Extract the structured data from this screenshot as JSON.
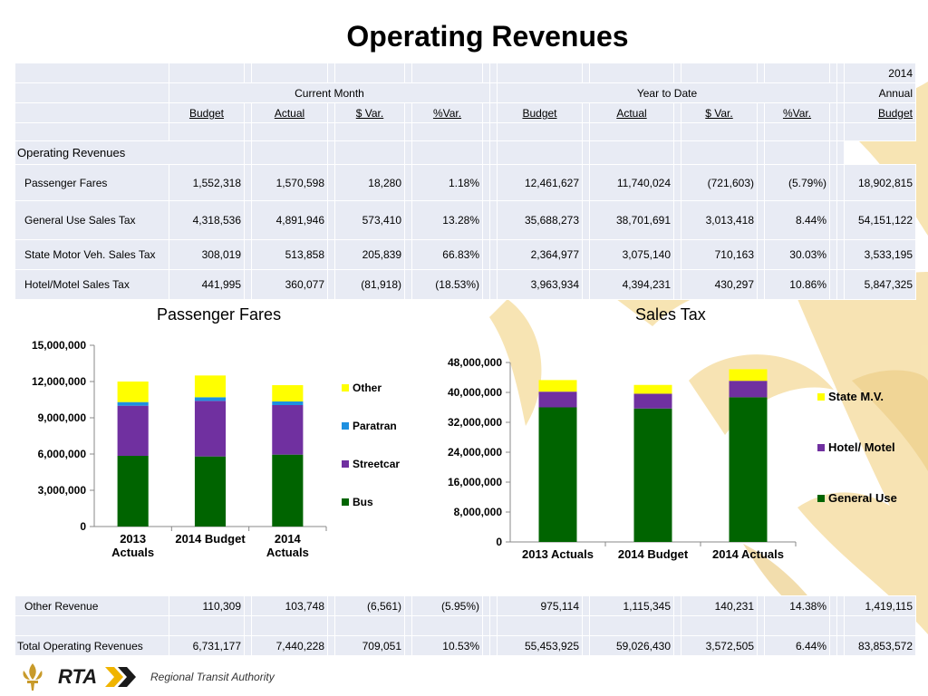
{
  "title": "Operating Revenues",
  "table": {
    "header_year": "2014",
    "group_current": "Current Month",
    "group_ytd": "Year to Date",
    "group_annual": "Annual",
    "col_labels": [
      "Budget",
      "Actual",
      "$ Var.",
      "%Var.",
      "Budget",
      "Actual",
      "$ Var.",
      "%Var.",
      "Budget"
    ],
    "section_label": "Operating Revenues",
    "rows": [
      {
        "label": "Passenger Fares",
        "cm_budget": "1,552,318",
        "cm_actual": "1,570,598",
        "cm_var": "18,280",
        "cm_pct": "1.18%",
        "ytd_budget": "12,461,627",
        "ytd_actual": "11,740,024",
        "ytd_var": "(721,603)",
        "ytd_pct": "(5.79%)",
        "annual_budget": "18,902,815"
      },
      {
        "label": "General Use Sales Tax",
        "cm_budget": "4,318,536",
        "cm_actual": "4,891,946",
        "cm_var": "573,410",
        "cm_pct": "13.28%",
        "ytd_budget": "35,688,273",
        "ytd_actual": "38,701,691",
        "ytd_var": "3,013,418",
        "ytd_pct": "8.44%",
        "annual_budget": "54,151,122"
      },
      {
        "label": "State Motor Veh. Sales Tax",
        "cm_budget": "308,019",
        "cm_actual": "513,858",
        "cm_var": "205,839",
        "cm_pct": "66.83%",
        "ytd_budget": "2,364,977",
        "ytd_actual": "3,075,140",
        "ytd_var": "710,163",
        "ytd_pct": "30.03%",
        "annual_budget": "3,533,195"
      },
      {
        "label": "Hotel/Motel Sales Tax",
        "cm_budget": "441,995",
        "cm_actual": "360,077",
        "cm_var": "(81,918)",
        "cm_pct": "(18.53%)",
        "ytd_budget": "3,963,934",
        "ytd_actual": "4,394,231",
        "ytd_var": "430,297",
        "ytd_pct": "10.86%",
        "annual_budget": "5,847,325"
      }
    ],
    "other_row": {
      "label": "Other Revenue",
      "cm_budget": "110,309",
      "cm_actual": "103,748",
      "cm_var": "(6,561)",
      "cm_pct": "(5.95%)",
      "ytd_budget": "975,114",
      "ytd_actual": "1,115,345",
      "ytd_var": "140,231",
      "ytd_pct": "14.38%",
      "annual_budget": "1,419,115"
    },
    "total_row": {
      "label": "Total Operating Revenues",
      "cm_budget": "6,731,177",
      "cm_actual": "7,440,228",
      "cm_var": "709,051",
      "cm_pct": "10.53%",
      "ytd_budget": "55,453,925",
      "ytd_actual": "59,026,430",
      "ytd_var": "3,572,505",
      "ytd_pct": "6.44%",
      "annual_budget": "83,853,572"
    }
  },
  "chart_data": [
    {
      "type": "bar",
      "stacked": true,
      "title": "Passenger Fares",
      "categories": [
        "2013 Actuals",
        "2014 Budget",
        "2014 Actuals"
      ],
      "category_lines": [
        [
          "2013",
          "Actuals"
        ],
        [
          "2014 Budget"
        ],
        [
          "2014",
          "Actuals"
        ]
      ],
      "series": [
        {
          "name": "Bus",
          "color": "#006400",
          "values": [
            5850000,
            5800000,
            5950000
          ]
        },
        {
          "name": "Streetcar",
          "color": "#7030a0",
          "values": [
            4150000,
            4600000,
            4100000
          ]
        },
        {
          "name": "Paratran",
          "color": "#1e90e0",
          "values": [
            300000,
            300000,
            300000
          ]
        },
        {
          "name": "Other",
          "color": "#ffff00",
          "values": [
            1700000,
            1800000,
            1350000
          ]
        }
      ],
      "legend_order": [
        "Other",
        "Paratran",
        "Streetcar",
        "Bus"
      ],
      "ylim": [
        0,
        15000000
      ],
      "yticks": [
        0,
        3000000,
        6000000,
        9000000,
        12000000,
        15000000
      ],
      "ytick_labels": [
        "0",
        "3,000,000",
        "6,000,000",
        "9,000,000",
        "12,000,000",
        "15,000,000"
      ],
      "legend_position": "right"
    },
    {
      "type": "bar",
      "stacked": true,
      "title": "Sales Tax",
      "categories": [
        "2013 Actuals",
        "2014 Budget",
        "2014 Actuals"
      ],
      "category_lines": [
        [
          "2013 Actuals"
        ],
        [
          "2014 Budget"
        ],
        [
          "2014 Actuals"
        ]
      ],
      "series": [
        {
          "name": "General Use",
          "color": "#006400",
          "values": [
            36000000,
            35700000,
            38700000
          ]
        },
        {
          "name": "Hotel/ Motel",
          "color": "#7030a0",
          "values": [
            4200000,
            3950000,
            4400000
          ]
        },
        {
          "name": "State M.V.",
          "color": "#ffff00",
          "values": [
            3100000,
            2350000,
            3100000
          ]
        }
      ],
      "legend_order": [
        "State M.V.",
        "Hotel/ Motel",
        "General Use"
      ],
      "ylim": [
        0,
        48000000
      ],
      "yticks": [
        0,
        8000000,
        16000000,
        24000000,
        32000000,
        40000000,
        48000000
      ],
      "ytick_labels": [
        "0",
        "8,000,000",
        "16,000,000",
        "24,000,000",
        "32,000,000",
        "40,000,000",
        "48,000,000"
      ],
      "legend_position": "right"
    }
  ],
  "footer": {
    "logo_text": "RTA",
    "tagline": "Regional Transit Authority",
    "logo_accent": "#f0b400",
    "fleur_color": "#c89a2a"
  }
}
